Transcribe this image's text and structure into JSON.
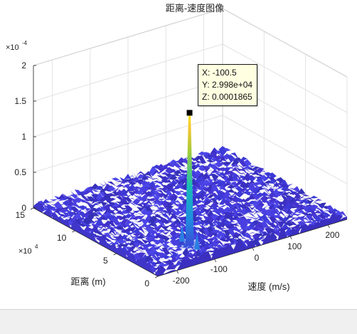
{
  "chart_data": {
    "type": "surface",
    "title": "距离-速度图像",
    "xlabel": "速度 (m/s)",
    "ylabel": "距离 (m)",
    "zlabel": "",
    "xlim": [
      -250,
      250
    ],
    "ylim": [
      0,
      150000
    ],
    "zlim": [
      0,
      0.0002
    ],
    "x_ticks": [
      "-200",
      "-100",
      "0",
      "100",
      "200"
    ],
    "y_ticks": [
      "0",
      "5",
      "10",
      "15"
    ],
    "z_ticks": [
      "0",
      "0.5",
      "1",
      "1.5",
      "2"
    ],
    "y_exponent_label": "×10",
    "y_exponent": "4",
    "z_exponent_label": "×10",
    "z_exponent": "-4",
    "grid": true,
    "colormap": "parula",
    "peak": {
      "x": -100.5,
      "y": 29980,
      "z": 0.0001865
    },
    "datatip": {
      "x_line": "X: -100.5",
      "y_line": "Y: 2.998e+04",
      "z_line": "Z: 0.0001865"
    }
  }
}
